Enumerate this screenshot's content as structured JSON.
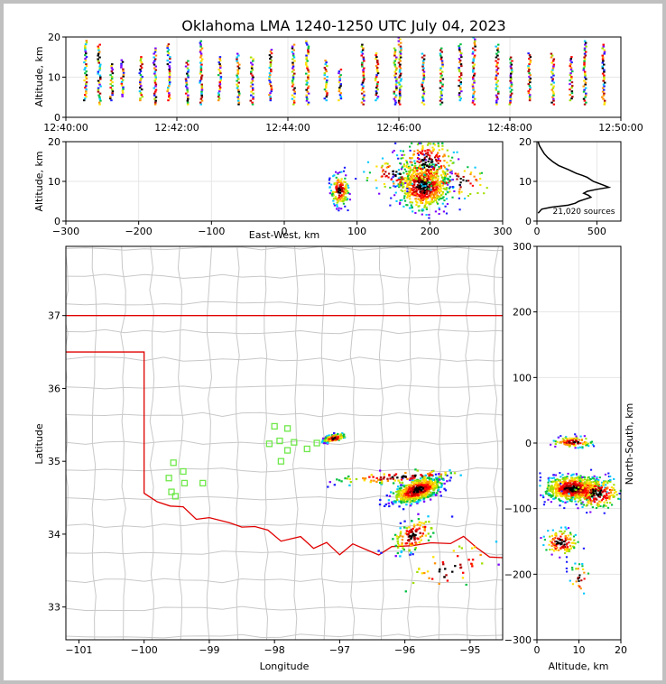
{
  "chart_data": [
    {
      "type": "heatmap",
      "name": "altitude-vs-time",
      "title": "Oklahoma LMA 1240-1250 UTC July 04, 2023",
      "ylabel": "Altitude, km",
      "xlim": [
        "12:40:00",
        "12:50:00"
      ],
      "ylim": [
        0,
        20
      ],
      "xticks": [
        "12:40:00",
        "12:42:00",
        "12:44:00",
        "12:46:00",
        "12:48:00",
        "12:50:00"
      ],
      "yticks": [
        0,
        10,
        20
      ],
      "flash_columns": [
        {
          "t": "12:40:20",
          "alt": [
            4,
            19
          ]
        },
        {
          "t": "12:40:35",
          "alt": [
            3,
            18
          ]
        },
        {
          "t": "12:40:48",
          "alt": [
            4,
            13
          ]
        },
        {
          "t": "12:41:00",
          "alt": [
            5,
            14
          ]
        },
        {
          "t": "12:41:20",
          "alt": [
            4,
            15
          ]
        },
        {
          "t": "12:41:35",
          "alt": [
            3,
            17
          ]
        },
        {
          "t": "12:41:50",
          "alt": [
            4,
            18
          ]
        },
        {
          "t": "12:42:10",
          "alt": [
            3,
            14
          ]
        },
        {
          "t": "12:42:25",
          "alt": [
            3,
            19
          ]
        },
        {
          "t": "12:42:45",
          "alt": [
            4,
            15
          ]
        },
        {
          "t": "12:43:05",
          "alt": [
            3,
            16
          ]
        },
        {
          "t": "12:43:20",
          "alt": [
            3,
            15
          ]
        },
        {
          "t": "12:43:40",
          "alt": [
            4,
            17
          ]
        },
        {
          "t": "12:44:05",
          "alt": [
            3,
            18
          ]
        },
        {
          "t": "12:44:20",
          "alt": [
            3,
            19
          ]
        },
        {
          "t": "12:44:40",
          "alt": [
            4,
            14
          ]
        },
        {
          "t": "12:44:55",
          "alt": [
            4,
            12
          ]
        },
        {
          "t": "12:45:20",
          "alt": [
            3,
            18
          ]
        },
        {
          "t": "12:45:35",
          "alt": [
            4,
            16
          ]
        },
        {
          "t": "12:45:55",
          "alt": [
            3,
            17
          ]
        },
        {
          "t": "12:46:00",
          "alt": [
            3,
            20
          ]
        },
        {
          "t": "12:46:25",
          "alt": [
            3,
            16
          ]
        },
        {
          "t": "12:46:45",
          "alt": [
            3,
            17
          ]
        },
        {
          "t": "12:47:05",
          "alt": [
            4,
            18
          ]
        },
        {
          "t": "12:47:20",
          "alt": [
            3,
            20
          ]
        },
        {
          "t": "12:47:45",
          "alt": [
            3,
            18
          ]
        },
        {
          "t": "12:48:00",
          "alt": [
            3,
            15
          ]
        },
        {
          "t": "12:48:20",
          "alt": [
            4,
            16
          ]
        },
        {
          "t": "12:48:45",
          "alt": [
            3,
            16
          ]
        },
        {
          "t": "12:49:05",
          "alt": [
            4,
            15
          ]
        },
        {
          "t": "12:49:20",
          "alt": [
            3,
            19
          ]
        },
        {
          "t": "12:49:40",
          "alt": [
            3,
            18
          ]
        }
      ]
    },
    {
      "type": "heatmap",
      "name": "altitude-vs-east-west",
      "xlabel": "East-West, km",
      "ylabel": "Altitude, km",
      "xlim": [
        -300,
        300
      ],
      "ylim": [
        0,
        20
      ],
      "xticks": [
        -300,
        -200,
        -100,
        0,
        100,
        200,
        300
      ],
      "yticks": [
        0,
        10,
        20
      ],
      "clusters": [
        {
          "x": 75,
          "y": 8,
          "sx": 6,
          "sy": 2,
          "n": 160
        },
        {
          "x": 190,
          "y": 9,
          "sx": 18,
          "sy": 3,
          "n": 650
        },
        {
          "x": 195,
          "y": 15,
          "sx": 20,
          "sy": 3,
          "n": 220
        },
        {
          "x": 150,
          "y": 12,
          "sx": 20,
          "sy": 2,
          "n": 70
        },
        {
          "x": 240,
          "y": 10,
          "sx": 25,
          "sy": 2,
          "n": 60
        }
      ]
    },
    {
      "type": "line",
      "name": "altitude-histogram",
      "xlim": [
        0,
        700
      ],
      "ylim": [
        0,
        20
      ],
      "xticks": [
        0,
        500
      ],
      "yticks": [
        0,
        10,
        20
      ],
      "annotation": "21,020 sources",
      "x": [
        10,
        20,
        40,
        60,
        90,
        130,
        180,
        260,
        330,
        380,
        420,
        470,
        560,
        600,
        500,
        420,
        390,
        430,
        450,
        400,
        350,
        320,
        260,
        120,
        40,
        10
      ],
      "y": [
        20,
        19,
        18,
        17,
        16,
        15,
        14,
        13,
        12,
        11.5,
        11,
        10,
        9,
        8.5,
        8,
        7.5,
        7,
        6.5,
        6,
        5.5,
        5,
        4.5,
        4,
        3.5,
        3,
        2
      ]
    },
    {
      "type": "scatter",
      "name": "plan-view-map",
      "xlabel": "Longitude",
      "ylabel": "Latitude",
      "xlim": [
        -101.2,
        -94.5
      ],
      "ylim": [
        32.55,
        37.95
      ],
      "xticks": [
        -101,
        -100,
        -99,
        -98,
        -97,
        -96,
        -95
      ],
      "yticks": [
        33,
        34,
        35,
        36,
        37
      ],
      "stations": [
        {
          "lon": -99.55,
          "lat": 34.98
        },
        {
          "lon": -99.4,
          "lat": 34.86
        },
        {
          "lon": -99.62,
          "lat": 34.77
        },
        {
          "lon": -99.38,
          "lat": 34.7
        },
        {
          "lon": -99.58,
          "lat": 34.58
        },
        {
          "lon": -99.52,
          "lat": 34.52
        },
        {
          "lon": -99.1,
          "lat": 34.7
        },
        {
          "lon": -98.0,
          "lat": 35.48
        },
        {
          "lon": -97.8,
          "lat": 35.45
        },
        {
          "lon": -97.92,
          "lat": 35.28
        },
        {
          "lon": -98.08,
          "lat": 35.24
        },
        {
          "lon": -97.7,
          "lat": 35.26
        },
        {
          "lon": -97.8,
          "lat": 35.15
        },
        {
          "lon": -97.5,
          "lat": 35.17
        },
        {
          "lon": -97.35,
          "lat": 35.25
        },
        {
          "lon": -97.9,
          "lat": 35.0
        }
      ],
      "clusters": [
        {
          "lon": -97.1,
          "lat": 35.33,
          "sx": 0.07,
          "sy": 0.03,
          "n": 90
        },
        {
          "lon": -95.82,
          "lat": 34.62,
          "sx": 0.16,
          "sy": 0.09,
          "n": 550
        },
        {
          "lon": -96.1,
          "lat": 34.8,
          "sx": 0.4,
          "sy": 0.05,
          "n": 100
        },
        {
          "lon": -95.88,
          "lat": 34.0,
          "sx": 0.15,
          "sy": 0.12,
          "n": 120
        },
        {
          "lon": -95.3,
          "lat": 33.55,
          "sx": 0.3,
          "sy": 0.2,
          "n": 45
        }
      ]
    },
    {
      "type": "heatmap",
      "name": "north-south-vs-altitude",
      "xlabel": "Altitude, km",
      "ylabel": "North-South, km",
      "xlim": [
        0,
        20
      ],
      "ylim": [
        -300,
        300
      ],
      "xticks": [
        0,
        10,
        20
      ],
      "yticks": [
        -300,
        -200,
        -100,
        0,
        100,
        200,
        300
      ],
      "clusters": [
        {
          "x": 8.5,
          "y": 3,
          "sx": 2.5,
          "sy": 4,
          "n": 110
        },
        {
          "x": 8.5,
          "y": -68,
          "sx": 3.5,
          "sy": 10,
          "n": 650
        },
        {
          "x": 14,
          "y": -75,
          "sx": 3,
          "sy": 12,
          "n": 200
        },
        {
          "x": 5.5,
          "y": -150,
          "sx": 2,
          "sy": 10,
          "n": 130
        },
        {
          "x": 10,
          "y": -205,
          "sx": 1.2,
          "sy": 12,
          "n": 30
        }
      ]
    }
  ]
}
